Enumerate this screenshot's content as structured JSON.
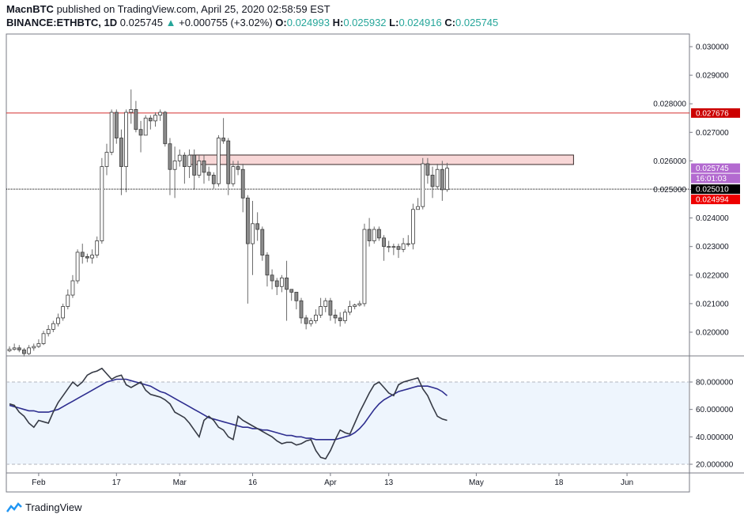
{
  "header": {
    "publisher": "MacnBTC",
    "published_text": "published on TradingView.com, April 25, 2020 02:58:59 EST",
    "symbol": "BINANCE:ETHBTC, 1D",
    "last_price": "0.025745",
    "change": "+0.000755 (+3.02%)",
    "open_label": "O:",
    "open": "0.024993",
    "high_label": "H:",
    "high": "0.025932",
    "low_label": "L:",
    "low": "0.024916",
    "close_label": "C:",
    "close": "0.025745",
    "up_icon": "triangle-up-icon"
  },
  "colors": {
    "up_fill": "#ffffff",
    "down_fill": "#8c8c8c",
    "candle_border": "#3a3a3a",
    "resistance": "#d32f2f",
    "zone_fill": "#f8d7d7",
    "last_price": "#b36ad0",
    "rsi": "#363a45",
    "rsi_ma": "#2d2d8f",
    "accent": "#26a69a"
  },
  "chart_data": {
    "type": "candlestick",
    "symbol": "BINANCE:ETHBTC",
    "interval": "1D",
    "price_ylim": [
      0.0195,
      0.0305
    ],
    "price_ticks": [
      "0.030000",
      "0.029000",
      "0.028000",
      "0.027000",
      "0.026000",
      "0.025000",
      "0.024000",
      "0.023000",
      "0.022000",
      "0.021000",
      "0.020000"
    ],
    "x_ticks": [
      {
        "label": "Feb",
        "date": "2020-02-01"
      },
      {
        "label": "17",
        "date": "2020-02-17"
      },
      {
        "label": "Mar",
        "date": "2020-03-01"
      },
      {
        "label": "16",
        "date": "2020-03-16"
      },
      {
        "label": "Apr",
        "date": "2020-04-01"
      },
      {
        "label": "13",
        "date": "2020-04-13"
      },
      {
        "label": "May",
        "date": "2020-05-01"
      },
      {
        "label": "18",
        "date": "2020-05-18"
      },
      {
        "label": "Jun",
        "date": "2020-06-01"
      }
    ],
    "price_tags": [
      {
        "value": 0.027676,
        "text": "0.027676",
        "color": "#cc0000"
      },
      {
        "value": 0.025745,
        "text": "0.025745",
        "color": "#b36ad0"
      },
      {
        "value": 0.025565,
        "text": "16:01:03",
        "color": "#b36ad0"
      },
      {
        "value": 0.02501,
        "text": "0.025010",
        "color": "#000000"
      },
      {
        "value": 0.024994,
        "text": "0.024994",
        "color": "#ee0000"
      }
    ],
    "horizontal_lines": [
      {
        "value": 0.027676,
        "style": "solid",
        "color": "#d32f2f"
      },
      {
        "value": 0.02501,
        "style": "dotted",
        "color": "#000000"
      }
    ],
    "zone": {
      "from": "2020-03-03",
      "to": "2020-05-21",
      "low": 0.025873,
      "high": 0.026205
    },
    "candles_columns": [
      "date",
      "open",
      "high",
      "low",
      "close"
    ],
    "candles": [
      [
        "2020-01-26",
        0.01935,
        0.0195,
        0.0193,
        0.0194
      ],
      [
        "2020-01-27",
        0.0194,
        0.0196,
        0.01935,
        0.01945
      ],
      [
        "2020-01-28",
        0.01945,
        0.01955,
        0.0193,
        0.01938
      ],
      [
        "2020-01-29",
        0.01938,
        0.01945,
        0.01915,
        0.01925
      ],
      [
        "2020-01-30",
        0.01925,
        0.01955,
        0.0192,
        0.01945
      ],
      [
        "2020-01-31",
        0.01945,
        0.0196,
        0.01935,
        0.0195
      ],
      [
        "2020-02-01",
        0.0195,
        0.01975,
        0.01945,
        0.0196
      ],
      [
        "2020-02-02",
        0.0196,
        0.02005,
        0.01955,
        0.01995
      ],
      [
        "2020-02-03",
        0.01995,
        0.02025,
        0.01985,
        0.0201
      ],
      [
        "2020-02-04",
        0.0201,
        0.0204,
        0.02,
        0.0203
      ],
      [
        "2020-02-05",
        0.0203,
        0.02065,
        0.0202,
        0.0205
      ],
      [
        "2020-02-06",
        0.0205,
        0.021,
        0.0204,
        0.0209
      ],
      [
        "2020-02-07",
        0.0209,
        0.0215,
        0.0208,
        0.0213
      ],
      [
        "2020-02-08",
        0.0213,
        0.022,
        0.0212,
        0.0218
      ],
      [
        "2020-02-09",
        0.0218,
        0.0229,
        0.0217,
        0.0228
      ],
      [
        "2020-02-10",
        0.0228,
        0.0231,
        0.0224,
        0.02265
      ],
      [
        "2020-02-11",
        0.02265,
        0.02275,
        0.02245,
        0.0226
      ],
      [
        "2020-02-12",
        0.0226,
        0.0229,
        0.0224,
        0.0227
      ],
      [
        "2020-02-13",
        0.0227,
        0.02335,
        0.0226,
        0.0232
      ],
      [
        "2020-02-14",
        0.0232,
        0.0261,
        0.0231,
        0.0258
      ],
      [
        "2020-02-15",
        0.0258,
        0.0266,
        0.0255,
        0.0263
      ],
      [
        "2020-02-16",
        0.0263,
        0.0278,
        0.0262,
        0.0277
      ],
      [
        "2020-02-17",
        0.0277,
        0.0278,
        0.0266,
        0.0268
      ],
      [
        "2020-02-18",
        0.0268,
        0.0271,
        0.0248,
        0.0258
      ],
      [
        "2020-02-19",
        0.0258,
        0.0278,
        0.0249,
        0.0277
      ],
      [
        "2020-02-20",
        0.0277,
        0.0285,
        0.0273,
        0.0278
      ],
      [
        "2020-02-21",
        0.0278,
        0.0281,
        0.027,
        0.0271
      ],
      [
        "2020-02-22",
        0.0271,
        0.0274,
        0.0263,
        0.0269
      ],
      [
        "2020-02-23",
        0.0269,
        0.0276,
        0.0269,
        0.0275
      ],
      [
        "2020-02-24",
        0.0275,
        0.0276,
        0.0271,
        0.0274
      ],
      [
        "2020-02-25",
        0.0274,
        0.0277,
        0.0272,
        0.0276
      ],
      [
        "2020-02-26",
        0.0276,
        0.0278,
        0.0274,
        0.0277
      ],
      [
        "2020-02-27",
        0.0277,
        0.02775,
        0.0265,
        0.0266
      ],
      [
        "2020-02-28",
        0.0266,
        0.0268,
        0.0248,
        0.0257
      ],
      [
        "2020-02-29",
        0.0257,
        0.0265,
        0.0247,
        0.026
      ],
      [
        "2020-03-01",
        0.026,
        0.0264,
        0.0258,
        0.0262
      ],
      [
        "2020-03-02",
        0.0262,
        0.0263,
        0.0252,
        0.0258
      ],
      [
        "2020-03-03",
        0.0258,
        0.0264,
        0.0254,
        0.0262
      ],
      [
        "2020-03-04",
        0.0262,
        0.0264,
        0.025,
        0.0255
      ],
      [
        "2020-03-05",
        0.0255,
        0.0262,
        0.0254,
        0.026
      ],
      [
        "2020-03-06",
        0.026,
        0.0262,
        0.0252,
        0.0256
      ],
      [
        "2020-03-07",
        0.0256,
        0.0258,
        0.0253,
        0.0255
      ],
      [
        "2020-03-08",
        0.0255,
        0.0256,
        0.025,
        0.0252
      ],
      [
        "2020-03-09",
        0.0252,
        0.0269,
        0.0251,
        0.0268
      ],
      [
        "2020-03-10",
        0.0268,
        0.0275,
        0.0266,
        0.0267
      ],
      [
        "2020-03-11",
        0.0267,
        0.0268,
        0.0248,
        0.0252
      ],
      [
        "2020-03-12",
        0.0252,
        0.026,
        0.0251,
        0.0258
      ],
      [
        "2020-03-13",
        0.0258,
        0.026,
        0.0255,
        0.0257
      ],
      [
        "2020-03-14",
        0.0257,
        0.0259,
        0.0242,
        0.0247
      ],
      [
        "2020-03-15",
        0.0247,
        0.0248,
        0.021,
        0.0231
      ],
      [
        "2020-03-16",
        0.0231,
        0.0246,
        0.022,
        0.0238
      ],
      [
        "2020-03-17",
        0.0238,
        0.0242,
        0.0232,
        0.0236
      ],
      [
        "2020-03-18",
        0.0236,
        0.0237,
        0.0225,
        0.0227
      ],
      [
        "2020-03-19",
        0.0227,
        0.0228,
        0.0216,
        0.022
      ],
      [
        "2020-03-20",
        0.022,
        0.0222,
        0.0215,
        0.0218
      ],
      [
        "2020-03-21",
        0.0218,
        0.0219,
        0.0213,
        0.0216
      ],
      [
        "2020-03-22",
        0.0216,
        0.022,
        0.0214,
        0.0219
      ],
      [
        "2020-03-23",
        0.0219,
        0.0225,
        0.0204,
        0.0215
      ],
      [
        "2020-03-24",
        0.0215,
        0.0215,
        0.0211,
        0.0214
      ],
      [
        "2020-03-25",
        0.0214,
        0.0214,
        0.0208,
        0.0211
      ],
      [
        "2020-03-26",
        0.0211,
        0.0212,
        0.0203,
        0.0205
      ],
      [
        "2020-03-27",
        0.0205,
        0.0206,
        0.0201,
        0.0203
      ],
      [
        "2020-03-28",
        0.0203,
        0.0205,
        0.0202,
        0.0204
      ],
      [
        "2020-03-29",
        0.0204,
        0.0208,
        0.0203,
        0.0206
      ],
      [
        "2020-03-30",
        0.0206,
        0.0212,
        0.0205,
        0.0209
      ],
      [
        "2020-03-31",
        0.0209,
        0.0212,
        0.0207,
        0.0211
      ],
      [
        "2020-04-01",
        0.0211,
        0.0212,
        0.0204,
        0.0206
      ],
      [
        "2020-04-02",
        0.0206,
        0.0208,
        0.0203,
        0.0205
      ],
      [
        "2020-04-03",
        0.0205,
        0.0207,
        0.0202,
        0.0204
      ],
      [
        "2020-04-04",
        0.0204,
        0.0208,
        0.0203,
        0.0207
      ],
      [
        "2020-04-05",
        0.0207,
        0.0211,
        0.0206,
        0.0209
      ],
      [
        "2020-04-06",
        0.0209,
        0.021,
        0.0208,
        0.02095
      ],
      [
        "2020-04-07",
        0.02095,
        0.0211,
        0.0209,
        0.021
      ],
      [
        "2020-04-08",
        0.021,
        0.0238,
        0.0209,
        0.0236
      ],
      [
        "2020-04-09",
        0.0236,
        0.024,
        0.023,
        0.0232
      ],
      [
        "2020-04-10",
        0.0232,
        0.0237,
        0.0231,
        0.0236
      ],
      [
        "2020-04-11",
        0.0236,
        0.0237,
        0.0232,
        0.0233
      ],
      [
        "2020-04-12",
        0.0233,
        0.0234,
        0.0225,
        0.023
      ],
      [
        "2020-04-13",
        0.023,
        0.0232,
        0.0228,
        0.023
      ],
      [
        "2020-04-14",
        0.023,
        0.0231,
        0.0227,
        0.023
      ],
      [
        "2020-04-15",
        0.023,
        0.0231,
        0.0226,
        0.0229
      ],
      [
        "2020-04-16",
        0.0229,
        0.0233,
        0.0228,
        0.0231
      ],
      [
        "2020-04-17",
        0.0231,
        0.0234,
        0.023,
        0.0231
      ],
      [
        "2020-04-18",
        0.0231,
        0.0245,
        0.0229,
        0.0243
      ],
      [
        "2020-04-19",
        0.0243,
        0.0247,
        0.0243,
        0.0244
      ],
      [
        "2020-04-20",
        0.0244,
        0.0261,
        0.0243,
        0.0259
      ],
      [
        "2020-04-21",
        0.0259,
        0.0261,
        0.0252,
        0.0255
      ],
      [
        "2020-04-22",
        0.0255,
        0.0258,
        0.0247,
        0.0251
      ],
      [
        "2020-04-23",
        0.0251,
        0.0259,
        0.025,
        0.0257
      ],
      [
        "2020-04-24",
        0.0257,
        0.026,
        0.0246,
        0.02499
      ],
      [
        "2020-04-25",
        0.024993,
        0.025932,
        0.024916,
        0.025745
      ]
    ],
    "rsi_ylim": [
      10,
      95
    ],
    "rsi_ticks": [
      "80.000000",
      "60.000000",
      "40.000000",
      "20.000000"
    ],
    "rsi_band": [
      20,
      80
    ],
    "rsi": [
      64,
      63,
      58,
      55,
      50,
      47,
      52,
      51,
      50,
      58,
      65,
      70,
      75,
      80,
      77,
      80,
      85,
      87,
      88,
      90,
      86,
      82,
      84,
      85,
      78,
      76,
      78,
      80,
      74,
      71,
      70,
      69,
      67,
      64,
      58,
      56,
      54,
      50,
      45,
      40,
      52,
      55,
      52,
      47,
      45,
      40,
      38,
      55,
      52,
      50,
      48,
      46,
      44,
      42,
      40,
      37,
      35,
      36,
      36,
      34,
      35,
      37,
      38,
      30,
      25,
      24,
      30,
      38,
      45,
      43,
      42,
      50,
      58,
      65,
      72,
      78,
      80,
      76,
      72,
      70,
      78,
      80,
      81,
      82,
      83,
      75,
      70,
      62,
      55,
      53,
      52
    ],
    "rsi_ma": [
      63,
      62,
      61,
      60,
      59,
      59,
      58,
      58,
      58,
      59,
      60,
      62,
      64,
      66,
      68,
      70,
      72,
      74,
      76,
      78,
      80,
      81,
      82,
      82,
      82,
      81,
      80,
      79,
      78,
      77,
      75,
      73,
      72,
      70,
      68,
      66,
      64,
      62,
      60,
      58,
      56,
      54,
      53,
      52,
      51,
      50,
      49,
      48,
      47,
      47,
      46,
      46,
      45,
      45,
      44,
      43,
      42,
      41,
      41,
      40,
      40,
      39,
      39,
      38,
      38,
      38,
      38,
      38,
      39,
      40,
      41,
      43,
      46,
      50,
      55,
      60,
      64,
      67,
      69,
      71,
      73,
      74,
      75,
      76,
      77,
      77,
      77,
      76,
      75,
      73,
      70
    ]
  },
  "footer": {
    "logo_text": "TradingView",
    "logo_icon": "tradingview-logo-icon"
  }
}
